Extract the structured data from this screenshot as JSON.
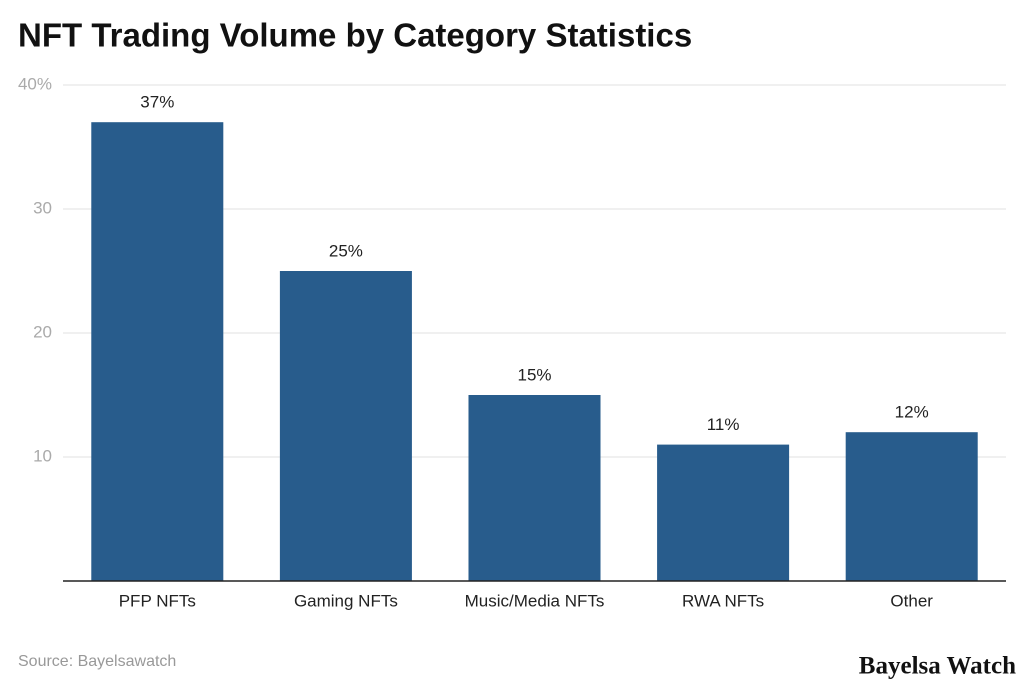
{
  "chart_data": {
    "type": "bar",
    "title": "NFT Trading Volume by Category Statistics",
    "categories": [
      "PFP NFTs",
      "Gaming NFTs",
      "Music/Media NFTs",
      "RWA NFTs",
      "Other"
    ],
    "values": [
      37,
      25,
      15,
      11,
      12
    ],
    "value_labels": [
      "37%",
      "25%",
      "15%",
      "11%",
      "12%"
    ],
    "color": "#285c8c",
    "ylim": [
      0,
      40
    ],
    "yticks": [
      10,
      20,
      30,
      {
        "value": 40,
        "label": "40%"
      }
    ],
    "grid": true,
    "source": "Source: Bayelsawatch",
    "brand": "Bayelsa Watch"
  }
}
